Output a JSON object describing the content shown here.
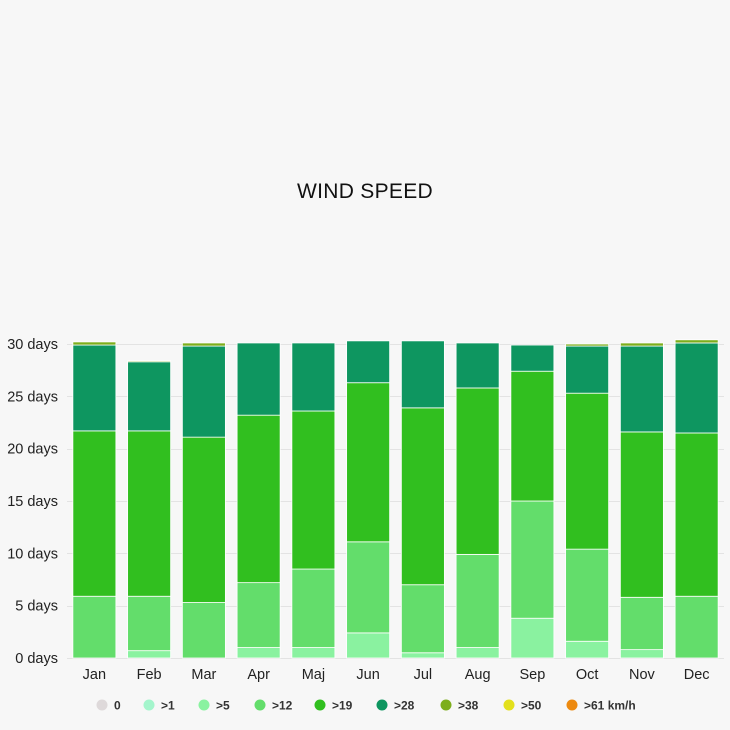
{
  "chart_data": {
    "type": "bar",
    "stacked": true,
    "title": "WIND SPEED",
    "categories": [
      "Jan",
      "Feb",
      "Mar",
      "Apr",
      "Maj",
      "Jun",
      "Jul",
      "Aug",
      "Sep",
      "Oct",
      "Nov",
      "Dec"
    ],
    "ylim": [
      0,
      30
    ],
    "yticks": [
      0,
      5,
      10,
      15,
      20,
      25,
      30
    ],
    "ytick_labels": [
      "0 days",
      "5 days",
      "10 days",
      "15 days",
      "20 days",
      "25 days",
      "30 days"
    ],
    "grid": true,
    "legend_position": "bottom",
    "series": [
      {
        "name": "0",
        "color": "#ded9da",
        "values": [
          0,
          0,
          0,
          0,
          0,
          0,
          0,
          0,
          0,
          0,
          0,
          0
        ]
      },
      {
        "name": ">1",
        "color": "#a4f5cc",
        "values": [
          0,
          0,
          0,
          0,
          0,
          0,
          0,
          0,
          0,
          0,
          0,
          0
        ]
      },
      {
        "name": ">5",
        "color": "#8af2a0",
        "values": [
          0,
          0.7,
          0,
          1,
          1,
          2.4,
          0.5,
          1,
          3.8,
          1.6,
          0.8,
          0
        ]
      },
      {
        "name": ">12",
        "color": "#63dd6b",
        "values": [
          5.9,
          5.2,
          5.3,
          6.2,
          7.5,
          8.7,
          6.5,
          8.9,
          11.2,
          8.8,
          5,
          5.9
        ]
      },
      {
        "name": ">19",
        "color": "#31bf1f",
        "values": [
          15.8,
          15.8,
          15.8,
          16,
          15.1,
          15.2,
          16.9,
          15.9,
          12.4,
          14.9,
          15.8,
          15.6
        ]
      },
      {
        "name": ">28",
        "color": "#0e9660",
        "values": [
          8.2,
          6.6,
          8.7,
          6.9,
          6.5,
          4,
          6.4,
          4.3,
          2.5,
          4.5,
          8.2,
          8.6
        ]
      },
      {
        "name": ">38",
        "color": "#7dae1c",
        "values": [
          0.3,
          0.1,
          0.3,
          0,
          0,
          0,
          0,
          0,
          0,
          0.2,
          0.3,
          0.3
        ]
      },
      {
        "name": ">50",
        "color": "#e3e01c",
        "values": [
          0,
          0,
          0,
          0,
          0,
          0,
          0,
          0,
          0,
          0,
          0,
          0
        ]
      },
      {
        "name": ">61 km/h",
        "color": "#ed8a10",
        "values": [
          0,
          0,
          0,
          0,
          0,
          0,
          0,
          0,
          0,
          0,
          0,
          0
        ]
      }
    ]
  }
}
